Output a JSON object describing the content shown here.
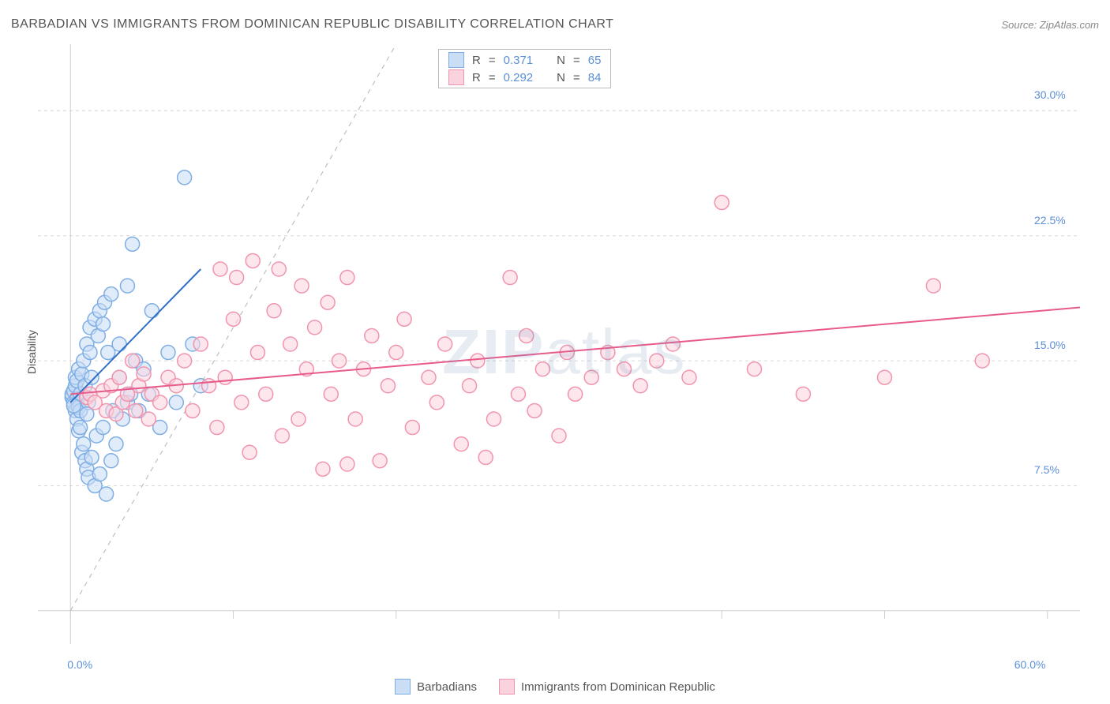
{
  "title": "BARBADIAN VS IMMIGRANTS FROM DOMINICAN REPUBLIC DISABILITY CORRELATION CHART",
  "source": "Source: ZipAtlas.com",
  "ylabel": "Disability",
  "watermark_bold": "ZIP",
  "watermark_rest": "atlas",
  "chart": {
    "type": "scatter",
    "background_color": "#ffffff",
    "grid_color": "#d7d7d7",
    "axis_color": "#d0d0d0",
    "tick_color": "#cfcfcf",
    "xlim": [
      -2,
      62
    ],
    "ylim": [
      -2,
      34
    ],
    "y_ticks": [
      7.5,
      15.0,
      22.5,
      30.0
    ],
    "y_tick_labels": [
      "7.5%",
      "15.0%",
      "22.5%",
      "30.0%"
    ],
    "x_ticks": [
      0,
      10,
      20,
      30,
      40,
      50,
      60
    ],
    "x_tick_labels_shown": {
      "0": "0.0%",
      "60": "60.0%"
    },
    "marker_radius": 9,
    "marker_stroke_width": 1.5,
    "trend_line_width": 2,
    "ref_line_dash": "6,6",
    "ref_line_color": "#bfbfbf",
    "tick_label_color": "#5b8fd6",
    "tick_label_fontsize": 14,
    "axis_label_fontsize": 14,
    "axis_label_color": "#555555"
  },
  "ref_line": {
    "x1": 0,
    "y1": 0,
    "x2": 20,
    "y2": 34
  },
  "series": [
    {
      "id": "barbadians",
      "label": "Barbadians",
      "fill": "#c9ddf5",
      "stroke": "#7faee3",
      "fill_opacity": 0.55,
      "R": "0.371",
      "N": "65",
      "trend": {
        "x1": 0,
        "y1": 12.5,
        "x2": 8,
        "y2": 20.5,
        "color": "#2f6fc7"
      },
      "points": [
        [
          0.1,
          12.8
        ],
        [
          0.1,
          13.0
        ],
        [
          0.2,
          12.5
        ],
        [
          0.2,
          13.2
        ],
        [
          0.3,
          12.0
        ],
        [
          0.3,
          13.5
        ],
        [
          0.3,
          14.0
        ],
        [
          0.4,
          11.5
        ],
        [
          0.4,
          12.7
        ],
        [
          0.4,
          13.8
        ],
        [
          0.5,
          10.8
        ],
        [
          0.5,
          12.2
        ],
        [
          0.5,
          14.5
        ],
        [
          0.6,
          11.0
        ],
        [
          0.6,
          12.0
        ],
        [
          0.6,
          13.0
        ],
        [
          0.7,
          9.5
        ],
        [
          0.7,
          14.2
        ],
        [
          0.8,
          10.0
        ],
        [
          0.8,
          15.0
        ],
        [
          0.9,
          9.0
        ],
        [
          0.9,
          13.5
        ],
        [
          1.0,
          8.5
        ],
        [
          1.0,
          16.0
        ],
        [
          1.1,
          8.0
        ],
        [
          1.1,
          12.5
        ],
        [
          1.2,
          15.5
        ],
        [
          1.2,
          17.0
        ],
        [
          1.3,
          9.2
        ],
        [
          1.3,
          14.0
        ],
        [
          1.5,
          17.5
        ],
        [
          1.5,
          7.5
        ],
        [
          1.6,
          10.5
        ],
        [
          1.7,
          16.5
        ],
        [
          1.8,
          18.0
        ],
        [
          1.8,
          8.2
        ],
        [
          2.0,
          17.2
        ],
        [
          2.0,
          11.0
        ],
        [
          2.1,
          18.5
        ],
        [
          2.2,
          7.0
        ],
        [
          2.3,
          15.5
        ],
        [
          2.5,
          19.0
        ],
        [
          2.5,
          9.0
        ],
        [
          2.6,
          12.0
        ],
        [
          2.8,
          10.0
        ],
        [
          3.0,
          16.0
        ],
        [
          3.0,
          14.0
        ],
        [
          3.2,
          11.5
        ],
        [
          3.5,
          12.5
        ],
        [
          3.5,
          19.5
        ],
        [
          3.7,
          13.0
        ],
        [
          3.8,
          22.0
        ],
        [
          4.0,
          15.0
        ],
        [
          4.2,
          12.0
        ],
        [
          4.5,
          14.5
        ],
        [
          4.8,
          13.0
        ],
        [
          5.0,
          18.0
        ],
        [
          5.5,
          11.0
        ],
        [
          6.0,
          15.5
        ],
        [
          6.5,
          12.5
        ],
        [
          7.0,
          26.0
        ],
        [
          7.5,
          16.0
        ],
        [
          8.0,
          13.5
        ],
        [
          1.0,
          11.8
        ],
        [
          0.2,
          12.3
        ]
      ]
    },
    {
      "id": "dominican",
      "label": "Immigrants from Dominican Republic",
      "fill": "#fbd3de",
      "stroke": "#f194ad",
      "fill_opacity": 0.55,
      "R": "0.292",
      "N": "84",
      "trend": {
        "x1": 0,
        "y1": 13.0,
        "x2": 62,
        "y2": 18.2,
        "color": "#e85a8a"
      },
      "points": [
        [
          1.0,
          12.8
        ],
        [
          1.2,
          13.0
        ],
        [
          1.5,
          12.5
        ],
        [
          2.0,
          13.2
        ],
        [
          2.2,
          12.0
        ],
        [
          2.5,
          13.5
        ],
        [
          2.8,
          11.8
        ],
        [
          3.0,
          14.0
        ],
        [
          3.2,
          12.5
        ],
        [
          3.5,
          13.0
        ],
        [
          3.8,
          15.0
        ],
        [
          4.0,
          12.0
        ],
        [
          4.2,
          13.5
        ],
        [
          4.5,
          14.2
        ],
        [
          4.8,
          11.5
        ],
        [
          5.0,
          13.0
        ],
        [
          5.5,
          12.5
        ],
        [
          6.0,
          14.0
        ],
        [
          6.5,
          13.5
        ],
        [
          7.0,
          15.0
        ],
        [
          7.5,
          12.0
        ],
        [
          8.0,
          16.0
        ],
        [
          8.5,
          13.5
        ],
        [
          9.0,
          11.0
        ],
        [
          9.2,
          20.5
        ],
        [
          9.5,
          14.0
        ],
        [
          10.0,
          17.5
        ],
        [
          10.2,
          20.0
        ],
        [
          10.5,
          12.5
        ],
        [
          11.0,
          9.5
        ],
        [
          11.2,
          21.0
        ],
        [
          11.5,
          15.5
        ],
        [
          12.0,
          13.0
        ],
        [
          12.5,
          18.0
        ],
        [
          12.8,
          20.5
        ],
        [
          13.0,
          10.5
        ],
        [
          13.5,
          16.0
        ],
        [
          14.0,
          11.5
        ],
        [
          14.2,
          19.5
        ],
        [
          14.5,
          14.5
        ],
        [
          15.0,
          17.0
        ],
        [
          15.5,
          8.5
        ],
        [
          15.8,
          18.5
        ],
        [
          16.0,
          13.0
        ],
        [
          16.5,
          15.0
        ],
        [
          17.0,
          8.8
        ],
        [
          17.0,
          20.0
        ],
        [
          17.5,
          11.5
        ],
        [
          18.0,
          14.5
        ],
        [
          18.5,
          16.5
        ],
        [
          19.0,
          9.0
        ],
        [
          19.5,
          13.5
        ],
        [
          20.0,
          15.5
        ],
        [
          20.5,
          17.5
        ],
        [
          21.0,
          11.0
        ],
        [
          22.0,
          14.0
        ],
        [
          22.5,
          12.5
        ],
        [
          23.0,
          16.0
        ],
        [
          24.0,
          10.0
        ],
        [
          24.5,
          13.5
        ],
        [
          25.0,
          15.0
        ],
        [
          25.5,
          9.2
        ],
        [
          26.0,
          11.5
        ],
        [
          27.0,
          20.0
        ],
        [
          27.5,
          13.0
        ],
        [
          28.0,
          16.5
        ],
        [
          28.5,
          12.0
        ],
        [
          29.0,
          14.5
        ],
        [
          30.0,
          10.5
        ],
        [
          30.5,
          15.5
        ],
        [
          31.0,
          13.0
        ],
        [
          32.0,
          14.0
        ],
        [
          33.0,
          15.5
        ],
        [
          34.0,
          14.5
        ],
        [
          35.0,
          13.5
        ],
        [
          36.0,
          15.0
        ],
        [
          37.0,
          16.0
        ],
        [
          38.0,
          14.0
        ],
        [
          40.0,
          24.5
        ],
        [
          42.0,
          14.5
        ],
        [
          45.0,
          13.0
        ],
        [
          50.0,
          14.0
        ],
        [
          53.0,
          19.5
        ],
        [
          56.0,
          15.0
        ]
      ]
    }
  ],
  "top_legend": {
    "R_label": "R",
    "N_label": "N",
    "eq": "="
  },
  "bottom_legend_swatch_size": 18
}
